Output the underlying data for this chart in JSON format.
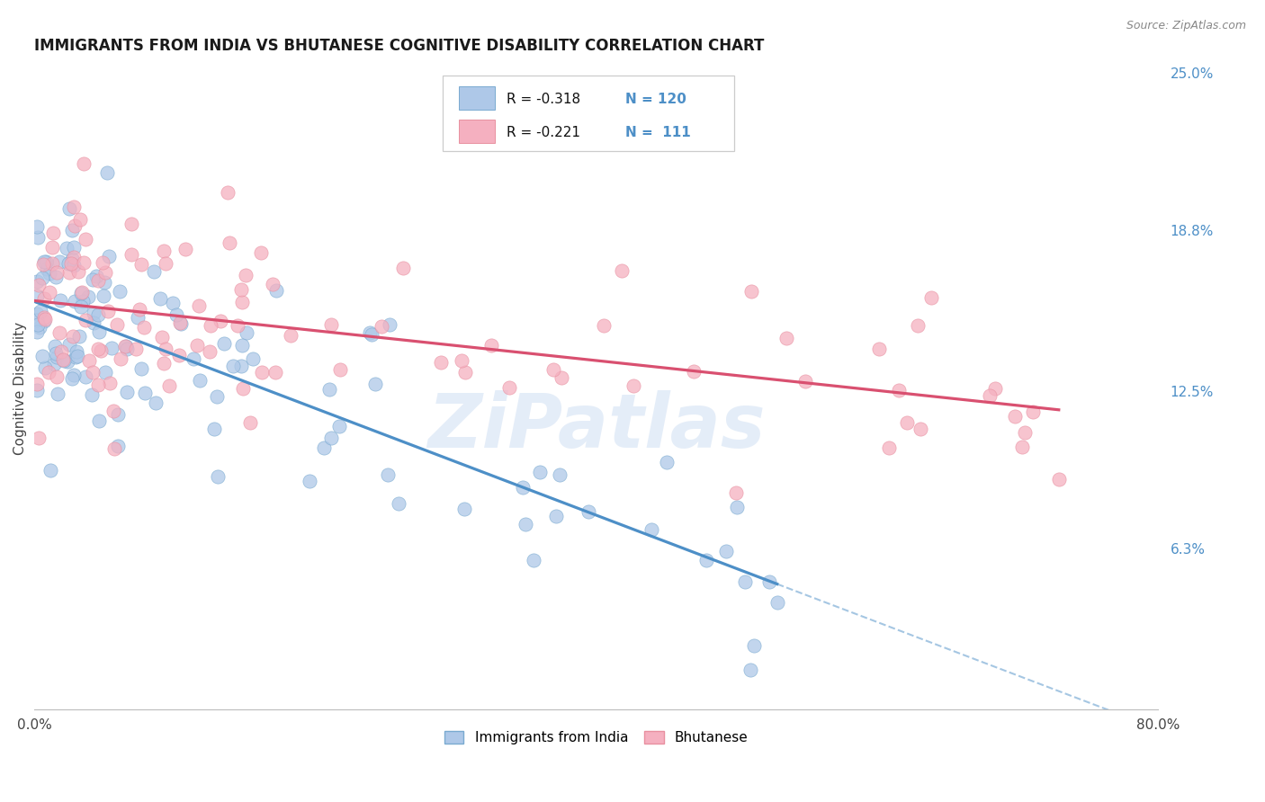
{
  "title": "IMMIGRANTS FROM INDIA VS BHUTANESE COGNITIVE DISABILITY CORRELATION CHART",
  "source": "Source: ZipAtlas.com",
  "ylabel": "Cognitive Disability",
  "watermark": "ZiPatlas",
  "legend_label1": "Immigrants from India",
  "legend_label2": "Bhutanese",
  "legend_r1": "R = -0.318",
  "legend_n1": "N = 120",
  "legend_r2": "R = -0.221",
  "legend_n2": "N =  111",
  "xlim": [
    0.0,
    0.8
  ],
  "ylim": [
    0.0,
    0.252
  ],
  "yticks_right": [
    0.063,
    0.125,
    0.188,
    0.25
  ],
  "ytick_right_labels": [
    "6.3%",
    "12.5%",
    "18.8%",
    "25.0%"
  ],
  "background_color": "#ffffff",
  "grid_color": "#d8d8d8",
  "color_india": "#aec8e8",
  "color_bhutan": "#f5b0c0",
  "color_india_edge": "#7aaad0",
  "color_bhutan_edge": "#e890a0",
  "color_india_line": "#4d8fc7",
  "color_bhutan_line": "#d95070",
  "color_right_axis": "#4d8fc7",
  "color_n_blue": "#4d8fc7",
  "seed": 12
}
